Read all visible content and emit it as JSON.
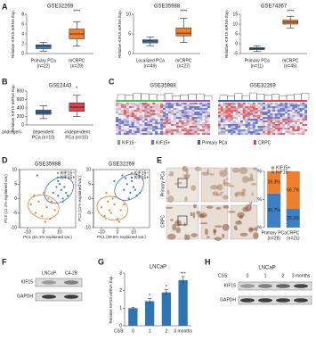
{
  "panel_labels": [
    "A",
    "B",
    "C",
    "D",
    "E",
    "F",
    "G",
    "H"
  ],
  "chart_data": [
    {
      "type": "box",
      "title": "GSE32269",
      "ylabel": "Relative KIF15 mRNA Exp.",
      "categories": [
        "Primary PCa",
        "mCRPC"
      ],
      "n_labels": [
        "(n=22)",
        "(n=29)"
      ],
      "colors": [
        "#3b7fc4",
        "#f07f2c"
      ],
      "boxes": [
        {
          "min": 0.5,
          "q1": 1.0,
          "median": 1.5,
          "q3": 1.8,
          "max": 2.3
        },
        {
          "min": 1.5,
          "q1": 3,
          "median": 4,
          "q3": 5,
          "max": 6.5
        }
      ],
      "ylim": [
        0,
        8
      ],
      "yticks": [
        0,
        2,
        4,
        6,
        8
      ],
      "annotation": "****"
    },
    {
      "type": "box",
      "title": "GSE35988",
      "ylabel": "Relative KIF15 mRNA Exp.",
      "categories": [
        "Localized PCa",
        "mCRPC"
      ],
      "n_labels": [
        "(n=49)",
        "(n=27)"
      ],
      "colors": [
        "#3b7fc4",
        "#f07f2c"
      ],
      "boxes": [
        {
          "min": 2,
          "q1": 2.7,
          "median": 3.2,
          "q3": 3.5,
          "max": 4.2
        },
        {
          "min": 2.8,
          "q1": 4.5,
          "median": 5.2,
          "q3": 6.5,
          "max": 9
        }
      ],
      "ylim": [
        0,
        10
      ],
      "yticks": [
        0,
        5,
        10
      ],
      "annotation": "****"
    },
    {
      "type": "box",
      "title": "GSE74367",
      "ylabel": "Relative KIF15 mRNA Exp.",
      "categories": [
        "Primary PCa",
        "mCRPC"
      ],
      "n_labels": [
        "(n=11)",
        "(n=45)"
      ],
      "colors": [
        "#3b7fc4",
        "#f07f2c"
      ],
      "boxes": [
        {
          "min": -4,
          "q1": -3,
          "median": -2.5,
          "q3": -2,
          "max": -1
        },
        {
          "min": 8,
          "q1": 10,
          "median": 11,
          "q3": 12,
          "max": 14
        }
      ],
      "ylim": [
        -5,
        15
      ],
      "yticks": [
        -5,
        0,
        5,
        10,
        15
      ],
      "annotation": "****"
    },
    {
      "type": "box",
      "title": "GSE2443",
      "ylabel": "Relative KIF15 mRNA Exp.",
      "group_label": "androgen-",
      "categories": [
        "dependent",
        "-independent"
      ],
      "n_labels": [
        "PCa (n=10)",
        "PCa (n=10)"
      ],
      "colors": [
        "#3a66a8",
        "#e0434d"
      ],
      "boxes": [
        {
          "min": 150,
          "q1": 250,
          "median": 300,
          "q3": 350,
          "max": 450
        },
        {
          "min": 200,
          "q1": 320,
          "median": 420,
          "q3": 520,
          "max": 700
        }
      ],
      "ylim": [
        0,
        800
      ],
      "yticks": [
        0,
        200,
        400,
        600,
        800
      ],
      "annotation": "*"
    },
    {
      "type": "scatter",
      "title": "GSE35988",
      "xlabel": "PC1 (61.1% explained var.)",
      "ylabel": "PC2 (11.1% explained var.)",
      "xlim": [
        -15,
        20
      ],
      "ylim": [
        -10,
        10
      ],
      "xticks": [
        -10,
        0,
        10
      ],
      "yticks": [
        -10,
        -5,
        0,
        5,
        10
      ],
      "series": [
        {
          "name": "KIF15−",
          "color": "#f07f2c",
          "x": [
            -8,
            -5,
            -3,
            -1,
            0,
            2,
            4,
            5,
            7,
            -6,
            1,
            3
          ],
          "y": [
            -2,
            -5,
            -1,
            -6,
            2,
            -3,
            -7,
            -1,
            -4,
            1,
            -8,
            0
          ]
        },
        {
          "name": "KIF15+",
          "color": "#3b7fc4",
          "x": [
            6,
            8,
            9,
            10,
            11,
            12,
            13,
            14,
            15,
            9,
            12,
            -4
          ],
          "y": [
            2,
            4,
            1,
            5,
            3,
            0,
            4,
            2,
            1,
            6,
            -1,
            8
          ]
        }
      ]
    },
    {
      "type": "scatter",
      "title": "GSE32269",
      "xlabel": "PC1 (39.6% explained var.)",
      "ylabel": "PC2 (11% explained var.)",
      "xlim": [
        -15,
        20
      ],
      "ylim": [
        -10,
        10
      ],
      "xticks": [
        -10,
        0,
        10
      ],
      "yticks": [
        -10,
        -5,
        0,
        5,
        10
      ],
      "series": [
        {
          "name": "KIF15−",
          "color": "#f07f2c",
          "x": [
            -10,
            -8,
            -6,
            -4,
            -2,
            0,
            2,
            -7,
            -3,
            1,
            4,
            -5
          ],
          "y": [
            -3,
            -6,
            -1,
            -5,
            -2,
            -7,
            -4,
            2,
            0,
            -8,
            -2,
            -4
          ]
        },
        {
          "name": "KIF15+",
          "color": "#3b7fc4",
          "x": [
            4,
            6,
            8,
            9,
            10,
            12,
            5,
            7,
            11,
            3,
            -2,
            14
          ],
          "y": [
            3,
            5,
            2,
            6,
            4,
            1,
            7,
            0,
            3,
            8,
            6,
            2
          ]
        }
      ]
    },
    {
      "type": "stacked_bar",
      "ylabel": "Percentage",
      "categories": [
        "Primary PCa",
        "CRPC"
      ],
      "n_labels": [
        "(n=28)",
        "(n=21)"
      ],
      "series": [
        {
          "name": "KIF15−",
          "color": "#3b7fc4",
          "values": [
            60.7,
            33.3
          ],
          "value_labels": [
            "60.7%",
            "33.3%"
          ]
        },
        {
          "name": "KIF15+",
          "color": "#f07f2c",
          "values": [
            39.3,
            66.7
          ],
          "value_labels": [
            "39.3%",
            "66.7%"
          ]
        }
      ],
      "ylim": [
        0,
        100
      ],
      "yticks": [
        {
          "value": 0,
          "label": "0%"
        },
        {
          "value": 50,
          "label": "50%"
        },
        {
          "value": 100,
          "label": "100%"
        }
      ]
    },
    {
      "type": "bar",
      "title": "LNCaP",
      "ylabel": "Relative KIF15 mRNA Exp.",
      "x_prefix": "CSS:",
      "categories": [
        "0",
        "1",
        "2",
        "3 months"
      ],
      "values": [
        1,
        1.4,
        1.9,
        2.6
      ],
      "errors": [
        0.05,
        0.15,
        0.15,
        0.2
      ],
      "annotations": [
        null,
        "*",
        "*",
        "***"
      ],
      "color": "#2e75b6",
      "ylim": [
        0,
        3
      ],
      "yticks": [
        0,
        1,
        2,
        3
      ]
    }
  ],
  "heatmap": {
    "titles": [
      "GSE35988",
      "GSE32269"
    ],
    "legend": [
      {
        "name": "KIF15−",
        "color": "#5cb85c"
      },
      {
        "name": "KIF15+",
        "color": "#9b59b6"
      },
      {
        "name": "Primary PCa",
        "color": "#3a66a8"
      },
      {
        "name": "CRPC",
        "color": "#e0434d"
      }
    ]
  },
  "ihc": {
    "rows": [
      "Primary PCa",
      "CRPC"
    ]
  },
  "blot_f": {
    "lanes": [
      "LNCaP",
      "C4-2B"
    ],
    "bands": [
      "KIF15",
      "GAPDH"
    ]
  },
  "blot_h": {
    "title": "LNCaP",
    "prefix": "CSS:",
    "lanes": [
      "0",
      "1",
      "2",
      "3 months"
    ],
    "bands": [
      "KIF15",
      "GAPDH"
    ]
  }
}
